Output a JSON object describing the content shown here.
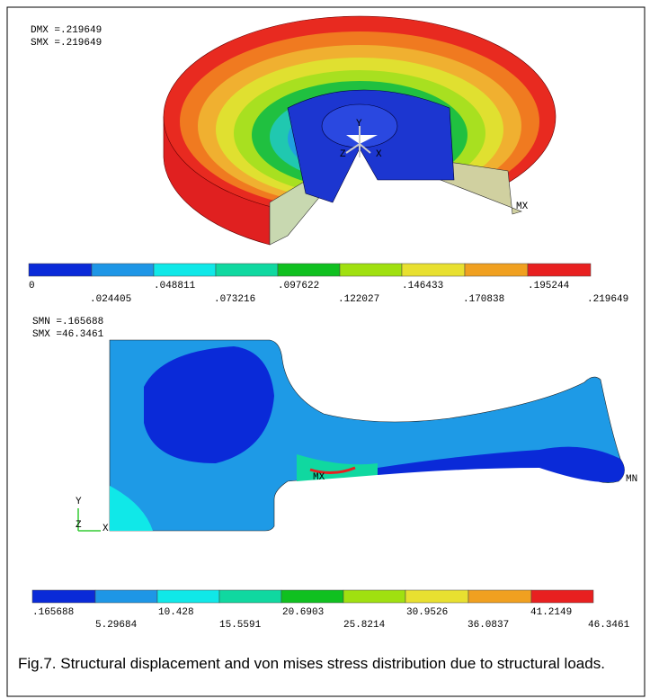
{
  "top_plot": {
    "header": [
      "DMX =.219649",
      "SMX =.219649"
    ],
    "triad": [
      "Y",
      "Z",
      "X"
    ],
    "max_marker": "MX",
    "legend_row1": [
      "0",
      ".048811",
      ".097622",
      ".146433",
      ".195244"
    ],
    "legend_row2": [
      ".024405",
      ".073216",
      ".122027",
      ".170838",
      ".219649"
    ]
  },
  "bottom_plot": {
    "header": [
      "SMN =.165688",
      "SMX =46.3461"
    ],
    "triad": [
      "Y",
      "Z",
      "X"
    ],
    "max_marker": "MX",
    "min_marker": "MN",
    "legend_row1": [
      ".165688",
      "10.428",
      "20.6903",
      "30.9526",
      "41.2149"
    ],
    "legend_row2": [
      "5.29684",
      "15.5591",
      "25.8214",
      "36.0837",
      "46.3461"
    ]
  },
  "caption": "Fig.7. Structural displacement and von mises stress distribution due to structural loads."
}
